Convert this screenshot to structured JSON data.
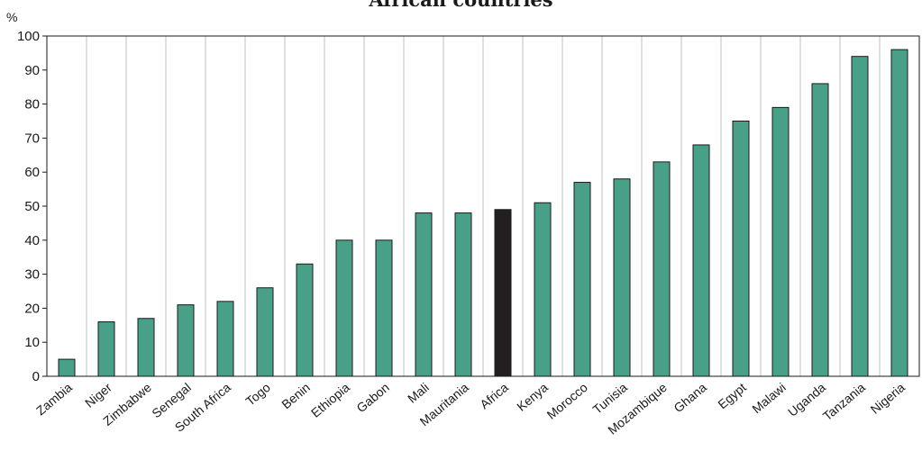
{
  "chart_data": {
    "type": "bar",
    "title": "African countries",
    "ylabel": "%",
    "xlabel": "",
    "ylim": [
      0,
      100
    ],
    "yticks": [
      0,
      10,
      20,
      30,
      40,
      50,
      60,
      70,
      80,
      90,
      100
    ],
    "grid": "vertical lines between categories",
    "categories": [
      "Zambia",
      "Niger",
      "Zimbabwe",
      "Senegal",
      "South Africa",
      "Togo",
      "Benin",
      "Ethiopia",
      "Gabon",
      "Mali",
      "Mauritania",
      "Africa",
      "Kenya",
      "Morocco",
      "Tunisia",
      "Mozambique",
      "Ghana",
      "Egypt",
      "Malawi",
      "Uganda",
      "Tanzania",
      "Nigeria"
    ],
    "values": [
      5,
      16,
      17,
      21,
      22,
      26,
      33,
      40,
      40,
      48,
      48,
      49,
      51,
      57,
      58,
      63,
      68,
      75,
      79,
      86,
      94,
      96
    ],
    "highlight": "Africa",
    "colors": {
      "bar": "#48a089",
      "highlight": "#231f20",
      "bar_outline": "#1a1a1a",
      "grid": "#bfbfbf"
    }
  }
}
